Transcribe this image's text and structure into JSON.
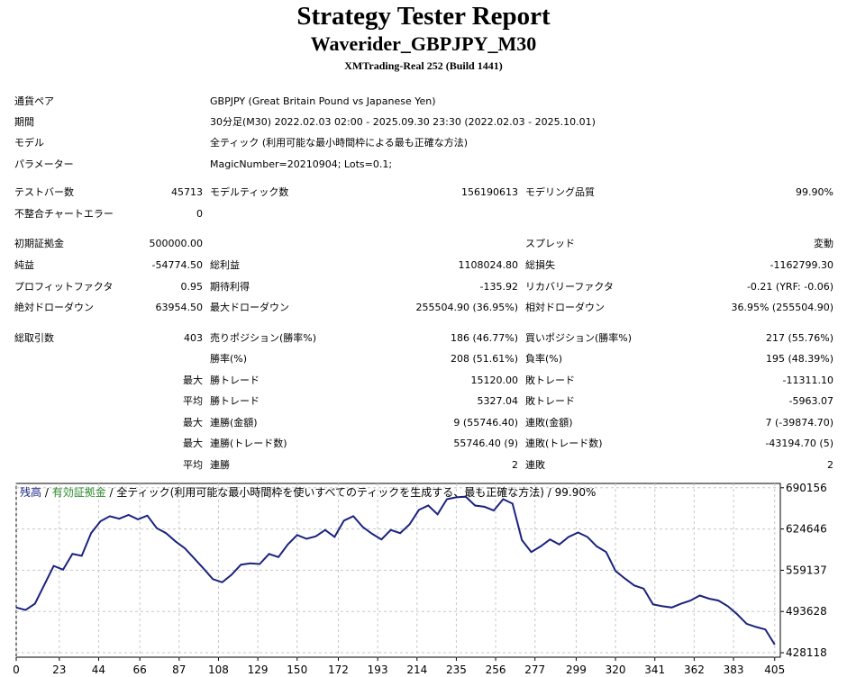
{
  "header": {
    "title": "Strategy Tester Report",
    "subtitle": "Waverider_GBPJPY_M30",
    "server": "XMTrading-Real 252 (Build 1441)"
  },
  "info": {
    "symbol_label": "通貨ペア",
    "symbol": "GBPJPY (Great Britain Pound vs Japanese Yen)",
    "period_label": "期間",
    "period": "30分足(M30) 2022.02.03 02:00 - 2025.09.30 23:30 (2022.02.03 - 2025.10.01)",
    "model_label": "モデル",
    "model": "全ティック (利用可能な最小時間枠による最も正確な方法)",
    "params_label": "パラメーター",
    "params": "MagicNumber=20210904; Lots=0.1;"
  },
  "stats": {
    "bars_label": "テストバー数",
    "bars": "45713",
    "ticks_label": "モデルティック数",
    "ticks": "156190613",
    "quality_label": "モデリング品質",
    "quality": "99.90%",
    "errors_label": "不整合チャートエラー",
    "errors": "0",
    "deposit_label": "初期証拠金",
    "deposit": "500000.00",
    "spread_label": "スプレッド",
    "spread": "変動",
    "net_label": "純益",
    "net": "-54774.50",
    "gross_profit_label": "総利益",
    "gross_profit": "1108024.80",
    "gross_loss_label": "総損失",
    "gross_loss": "-1162799.30",
    "pf_label": "プロフィットファクタ",
    "pf": "0.95",
    "expected_label": "期待利得",
    "expected": "-135.92",
    "recovery_label": "リカバリーファクタ",
    "recovery": "-0.21 (YRF: -0.06)",
    "abs_dd_label": "絶対ドローダウン",
    "abs_dd": "63954.50",
    "max_dd_label": "最大ドローダウン",
    "max_dd": "255504.90 (36.95%)",
    "rel_dd_label": "相対ドローダウン",
    "rel_dd": "36.95% (255504.90)",
    "trades_label": "総取引数",
    "trades": "403",
    "short_label": "売りポジション(勝率%)",
    "short": "186 (46.77%)",
    "long_label": "買いポジション(勝率%)",
    "long": "217 (55.76%)",
    "win_pct_label": "勝率(%)",
    "win_pct": "208 (51.61%)",
    "loss_pct_label": "負率(%)",
    "loss_pct": "195 (48.39%)",
    "max_label": "最大",
    "avg_label": "平均",
    "largest_win_label": "勝トレード",
    "largest_win": "15120.00",
    "largest_loss_label": "敗トレード",
    "largest_loss": "-11311.10",
    "avg_win_label": "勝トレード",
    "avg_win": "5327.04",
    "avg_loss_label": "敗トレード",
    "avg_loss": "-5963.07",
    "max_consec_win_label": "連勝(金額)",
    "max_consec_win": "9 (55746.40)",
    "max_consec_loss_label": "連敗(金額)",
    "max_consec_loss": "7 (-39874.70)",
    "max_consec_profit_label": "連勝(トレード数)",
    "max_consec_profit": "55746.40 (9)",
    "max_consec_lossamt_label": "連敗(トレード数)",
    "max_consec_lossamt": "-43194.70 (5)",
    "avg_consec_win_label": "連勝",
    "avg_consec_win": "2",
    "avg_consec_loss_label": "連敗",
    "avg_consec_loss": "2"
  },
  "chart_data": {
    "type": "line",
    "legend_balance": "残高",
    "legend_sep": " / ",
    "legend_equity": "有効証拠金",
    "legend_rest": " / 全ティック(利用可能な最小時間枠を使いすべてのティックを生成する、最も正確な方法) / 99.90%",
    "colors": {
      "balance": "#1a237e",
      "equity": "#2e8b2e",
      "grid": "#c8c8c8"
    },
    "grid": true,
    "xlim": [
      0,
      408
    ],
    "ylim": [
      421000,
      697000
    ],
    "xticks": [
      0,
      23,
      44,
      66,
      87,
      108,
      129,
      150,
      172,
      193,
      214,
      235,
      256,
      277,
      299,
      320,
      341,
      362,
      383,
      405
    ],
    "yticks": [
      428118,
      493628,
      559137,
      624646,
      690156
    ],
    "series": [
      {
        "x": [
          0,
          5,
          10,
          15,
          20,
          25,
          30,
          35,
          40,
          45,
          50,
          55,
          60,
          65,
          70,
          75,
          80,
          85,
          90,
          95,
          100,
          105,
          110,
          115,
          120,
          125,
          130,
          135,
          140,
          145,
          150,
          155,
          160,
          165,
          170,
          175,
          180,
          185,
          190,
          195,
          200,
          205,
          210,
          215,
          220,
          225,
          230,
          235,
          240,
          245,
          250,
          255,
          260,
          265,
          270,
          275,
          280,
          285,
          290,
          295,
          300,
          305,
          310,
          315,
          320,
          325,
          330,
          335,
          340,
          345,
          350,
          355,
          360,
          365,
          370,
          375,
          380,
          385,
          390,
          395,
          400,
          405
        ],
        "values": [
          500000,
          496000,
          506000,
          536000,
          566000,
          560000,
          585000,
          582000,
          618000,
          637000,
          645000,
          641000,
          647000,
          640000,
          646000,
          626000,
          618000,
          605000,
          594000,
          578000,
          562000,
          545000,
          540000,
          552000,
          568000,
          570000,
          569000,
          585000,
          580000,
          600000,
          615000,
          609000,
          613000,
          623000,
          612000,
          638000,
          645000,
          628000,
          617000,
          608000,
          623000,
          618000,
          632000,
          655000,
          662000,
          648000,
          672000,
          675000,
          676000,
          662000,
          660000,
          654000,
          672000,
          665000,
          607000,
          588000,
          597000,
          608000,
          600000,
          612000,
          619000,
          612000,
          597000,
          588000,
          558000,
          546000,
          535000,
          530000,
          505000,
          502000,
          500000,
          506000,
          511000,
          519000,
          514000,
          511000,
          502000,
          489000,
          474000,
          469000,
          465000,
          441000
        ]
      }
    ]
  }
}
